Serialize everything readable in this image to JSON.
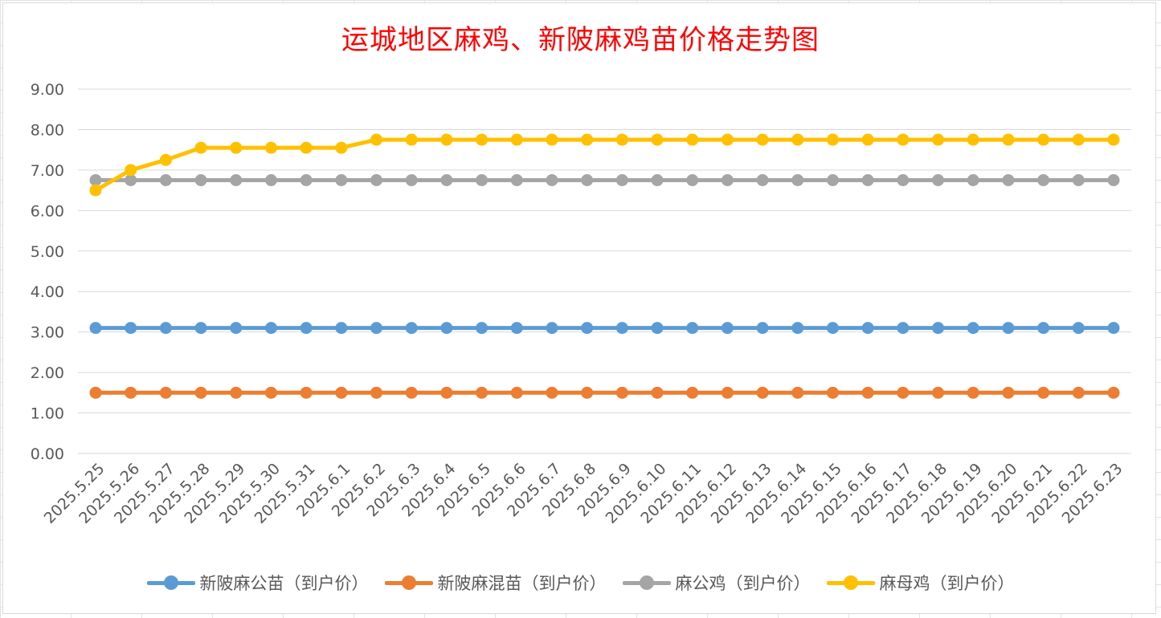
{
  "chart_data": {
    "type": "line",
    "title": "运城地区麻鸡、新陂麻鸡苗价格走势图",
    "x": [
      "2025.5.25",
      "2025.5.26",
      "2025.5.27",
      "2025.5.28",
      "2025.5.29",
      "2025.5.30",
      "2025.5.31",
      "2025.6.1",
      "2025.6.2",
      "2025.6.3",
      "2025.6.4",
      "2025.6.5",
      "2025.6.6",
      "2025.6.7",
      "2025.6.8",
      "2025.6.9",
      "2025.6.10",
      "2025.6.11",
      "2025.6.12",
      "2025.6.13",
      "2025.6.14",
      "2025.6.15",
      "2025.6.16",
      "2025.6.17",
      "2025.6.18",
      "2025.6.19",
      "2025.6.20",
      "2025.6.21",
      "2025.6.22",
      "2025.6.23"
    ],
    "ylim": [
      0,
      9
    ],
    "yticks": [
      "0.00",
      "1.00",
      "2.00",
      "3.00",
      "4.00",
      "5.00",
      "6.00",
      "7.00",
      "8.00",
      "9.00"
    ],
    "grid": true,
    "legend_position": "bottom",
    "series": [
      {
        "name": "新陂麻公苗（到户价）",
        "color": "#5b9bd5",
        "values": [
          3.1,
          3.1,
          3.1,
          3.1,
          3.1,
          3.1,
          3.1,
          3.1,
          3.1,
          3.1,
          3.1,
          3.1,
          3.1,
          3.1,
          3.1,
          3.1,
          3.1,
          3.1,
          3.1,
          3.1,
          3.1,
          3.1,
          3.1,
          3.1,
          3.1,
          3.1,
          3.1,
          3.1,
          3.1,
          3.1
        ]
      },
      {
        "name": "新陂麻混苗（到户价）",
        "color": "#ed7d31",
        "values": [
          1.5,
          1.5,
          1.5,
          1.5,
          1.5,
          1.5,
          1.5,
          1.5,
          1.5,
          1.5,
          1.5,
          1.5,
          1.5,
          1.5,
          1.5,
          1.5,
          1.5,
          1.5,
          1.5,
          1.5,
          1.5,
          1.5,
          1.5,
          1.5,
          1.5,
          1.5,
          1.5,
          1.5,
          1.5,
          1.5
        ]
      },
      {
        "name": "麻公鸡（到户价）",
        "color": "#a5a5a5",
        "values": [
          6.75,
          6.75,
          6.75,
          6.75,
          6.75,
          6.75,
          6.75,
          6.75,
          6.75,
          6.75,
          6.75,
          6.75,
          6.75,
          6.75,
          6.75,
          6.75,
          6.75,
          6.75,
          6.75,
          6.75,
          6.75,
          6.75,
          6.75,
          6.75,
          6.75,
          6.75,
          6.75,
          6.75,
          6.75,
          6.75
        ]
      },
      {
        "name": "麻母鸡（到户价）",
        "color": "#ffc000",
        "values": [
          6.5,
          7.0,
          7.25,
          7.55,
          7.55,
          7.55,
          7.55,
          7.55,
          7.75,
          7.75,
          7.75,
          7.75,
          7.75,
          7.75,
          7.75,
          7.75,
          7.75,
          7.75,
          7.75,
          7.75,
          7.75,
          7.75,
          7.75,
          7.75,
          7.75,
          7.75,
          7.75,
          7.75,
          7.75,
          7.75
        ]
      }
    ]
  }
}
